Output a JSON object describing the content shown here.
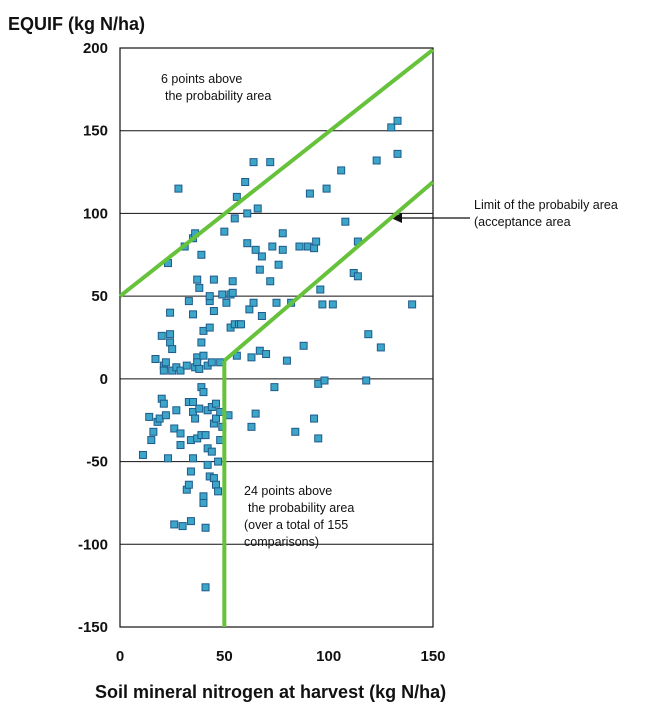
{
  "chart_data": {
    "type": "scatter",
    "title": "",
    "ylabel": "EQUIF (kg N/ha)",
    "xlabel": "Soil mineral nitrogen at harvest (kg N/ha)",
    "xlim": [
      0,
      150
    ],
    "ylim": [
      -150,
      200
    ],
    "xticks": [
      0,
      50,
      100,
      150
    ],
    "yticks": [
      200,
      150,
      100,
      50,
      0,
      -50,
      -100,
      -150
    ],
    "grid": "horizontal",
    "annotations": {
      "upper_note": [
        "6 points above",
        "the probability area"
      ],
      "lower_note": [
        "24 points above",
        "the probability area",
        "(over a total of 155",
        "comparisons)"
      ],
      "limit_label": [
        "Limit of the probabily area",
        "(acceptance area"
      ]
    },
    "colors": {
      "points": "#3ca6c8",
      "point_edge": "#1f5a8a",
      "limit_lines": "#66c23a"
    },
    "limit_lines": [
      {
        "points": [
          [
            0,
            50
          ],
          [
            150,
            199
          ]
        ]
      },
      {
        "points": [
          [
            50,
            11
          ],
          [
            150,
            119
          ]
        ]
      },
      {
        "points": [
          [
            50,
            11
          ],
          [
            50,
            -150
          ]
        ]
      }
    ],
    "points": [
      [
        11,
        -46
      ],
      [
        14,
        -23
      ],
      [
        15,
        -37
      ],
      [
        16,
        -32
      ],
      [
        17,
        12
      ],
      [
        18,
        -26
      ],
      [
        19,
        -24
      ],
      [
        20,
        26
      ],
      [
        20,
        -12
      ],
      [
        21,
        -15
      ],
      [
        21,
        8
      ],
      [
        21,
        5
      ],
      [
        22,
        -22
      ],
      [
        22,
        10
      ],
      [
        23,
        -48
      ],
      [
        23,
        70
      ],
      [
        24,
        40
      ],
      [
        24,
        27
      ],
      [
        24,
        22
      ],
      [
        25,
        18
      ],
      [
        25,
        5
      ],
      [
        26,
        -30
      ],
      [
        26,
        -88
      ],
      [
        27,
        -19
      ],
      [
        27,
        7
      ],
      [
        28,
        115
      ],
      [
        29,
        5
      ],
      [
        29,
        -40
      ],
      [
        29,
        -33
      ],
      [
        30,
        -89
      ],
      [
        31,
        80
      ],
      [
        32,
        8
      ],
      [
        32,
        -67
      ],
      [
        33,
        -64
      ],
      [
        33,
        47
      ],
      [
        33,
        -14
      ],
      [
        34,
        -86
      ],
      [
        34,
        -37
      ],
      [
        34,
        -56
      ],
      [
        35,
        -48
      ],
      [
        35,
        -14
      ],
      [
        35,
        -20
      ],
      [
        35,
        85
      ],
      [
        35,
        39
      ],
      [
        36,
        88
      ],
      [
        36,
        -24
      ],
      [
        36,
        7
      ],
      [
        37,
        13
      ],
      [
        37,
        10
      ],
      [
        37,
        -36
      ],
      [
        37,
        60
      ],
      [
        38,
        55
      ],
      [
        38,
        6
      ],
      [
        38,
        -18
      ],
      [
        39,
        -5
      ],
      [
        39,
        -34
      ],
      [
        39,
        75
      ],
      [
        39,
        22
      ],
      [
        40,
        -71
      ],
      [
        40,
        -75
      ],
      [
        40,
        14
      ],
      [
        40,
        -8
      ],
      [
        40,
        29
      ],
      [
        41,
        -34
      ],
      [
        41,
        -90
      ],
      [
        41,
        -126
      ],
      [
        42,
        -52
      ],
      [
        42,
        -42
      ],
      [
        42,
        -19
      ],
      [
        42,
        8
      ],
      [
        43,
        47
      ],
      [
        43,
        50
      ],
      [
        43,
        -59
      ],
      [
        43,
        31
      ],
      [
        44,
        10
      ],
      [
        44,
        -44
      ],
      [
        44,
        -17
      ],
      [
        45,
        -60
      ],
      [
        45,
        -27
      ],
      [
        45,
        41
      ],
      [
        45,
        60
      ],
      [
        46,
        -24
      ],
      [
        46,
        -15
      ],
      [
        46,
        -64
      ],
      [
        47,
        -68
      ],
      [
        47,
        -50
      ],
      [
        48,
        10
      ],
      [
        48,
        -37
      ],
      [
        48,
        -20
      ],
      [
        49,
        51
      ],
      [
        49,
        -29
      ],
      [
        50,
        89
      ],
      [
        51,
        46
      ],
      [
        52,
        -22
      ],
      [
        53,
        51
      ],
      [
        53,
        31
      ],
      [
        54,
        59
      ],
      [
        54,
        52
      ],
      [
        55,
        33
      ],
      [
        55,
        97
      ],
      [
        56,
        14
      ],
      [
        56,
        110
      ],
      [
        57,
        33
      ],
      [
        58,
        33
      ],
      [
        60,
        119
      ],
      [
        61,
        100
      ],
      [
        61,
        82
      ],
      [
        62,
        42
      ],
      [
        63,
        13
      ],
      [
        63,
        -29
      ],
      [
        64,
        46
      ],
      [
        64,
        131
      ],
      [
        65,
        -21
      ],
      [
        65,
        78
      ],
      [
        66,
        103
      ],
      [
        67,
        17
      ],
      [
        67,
        66
      ],
      [
        68,
        38
      ],
      [
        68,
        74
      ],
      [
        70,
        15
      ],
      [
        72,
        131
      ],
      [
        72,
        59
      ],
      [
        73,
        80
      ],
      [
        74,
        -5
      ],
      [
        75,
        46
      ],
      [
        76,
        69
      ],
      [
        78,
        88
      ],
      [
        78,
        78
      ],
      [
        80,
        11
      ],
      [
        82,
        46
      ],
      [
        84,
        -32
      ],
      [
        86,
        80
      ],
      [
        88,
        20
      ],
      [
        90,
        80
      ],
      [
        91,
        112
      ],
      [
        93,
        -24
      ],
      [
        93,
        79
      ],
      [
        94,
        83
      ],
      [
        95,
        -3
      ],
      [
        95,
        -36
      ],
      [
        96,
        54
      ],
      [
        97,
        45
      ],
      [
        98,
        -1
      ],
      [
        99,
        115
      ],
      [
        102,
        45
      ],
      [
        106,
        126
      ],
      [
        108,
        95
      ],
      [
        112,
        64
      ],
      [
        114,
        83
      ],
      [
        114,
        62
      ],
      [
        118,
        -1
      ],
      [
        119,
        27
      ],
      [
        123,
        132
      ],
      [
        125,
        19
      ],
      [
        130,
        152
      ],
      [
        133,
        136
      ],
      [
        133,
        156
      ],
      [
        140,
        45
      ]
    ]
  }
}
